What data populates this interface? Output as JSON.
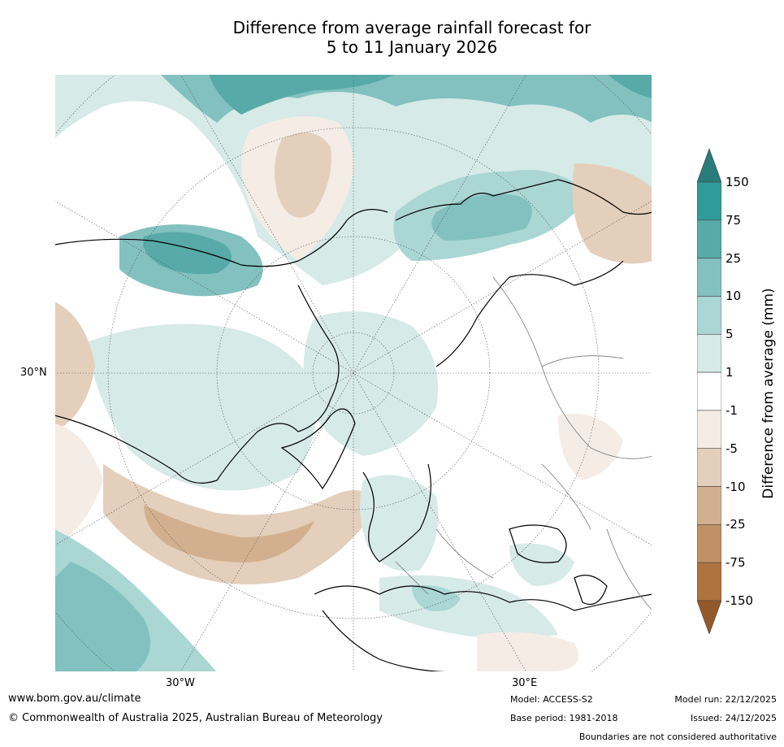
{
  "title": {
    "line1": "Difference from average rainfall forecast for",
    "line2": "5 to 11 January 2026"
  },
  "map": {
    "projection": "north-polar-stereographic",
    "lat_label": "30°N",
    "lon_labels": [
      "30°W",
      "30°E"
    ]
  },
  "colorbar": {
    "title": "Difference from average (mm)",
    "tick_labels": [
      "150",
      "75",
      "25",
      "10",
      "5",
      "1",
      "-1",
      "-5",
      "-10",
      "-25",
      "-75",
      "-150"
    ],
    "bins": [
      {
        "range": "> 150",
        "color": "#297c7a"
      },
      {
        "range": "75 to 150",
        "color": "#319b99"
      },
      {
        "range": "25 to 75",
        "color": "#57aaa8"
      },
      {
        "range": "10 to 25",
        "color": "#82c1bf"
      },
      {
        "range": "5 to 10",
        "color": "#aad6d4"
      },
      {
        "range": "1 to 5",
        "color": "#d6eae8"
      },
      {
        "range": "-1 to 1",
        "color": "#ffffff"
      },
      {
        "range": "-5 to -1",
        "color": "#f5ece6"
      },
      {
        "range": "-10 to -5",
        "color": "#e4cfbc"
      },
      {
        "range": "-25 to -10",
        "color": "#d2b08f"
      },
      {
        "range": "-75 to -25",
        "color": "#c09165"
      },
      {
        "range": "-150 to -75",
        "color": "#ae733f"
      },
      {
        "range": "< -150",
        "color": "#94592a"
      }
    ]
  },
  "footer": {
    "url": "www.bom.gov.au/climate",
    "copyright": "© Commonwealth of Australia 2025, Australian Bureau of Meteorology",
    "model": "Model: ACCESS-S2",
    "base_period": "Base period: 1981-2018",
    "model_run": "Model run: 22/12/2025",
    "issued": "Issued: 24/12/2025",
    "disclaimer": "Boundaries are not considered authoritative"
  }
}
